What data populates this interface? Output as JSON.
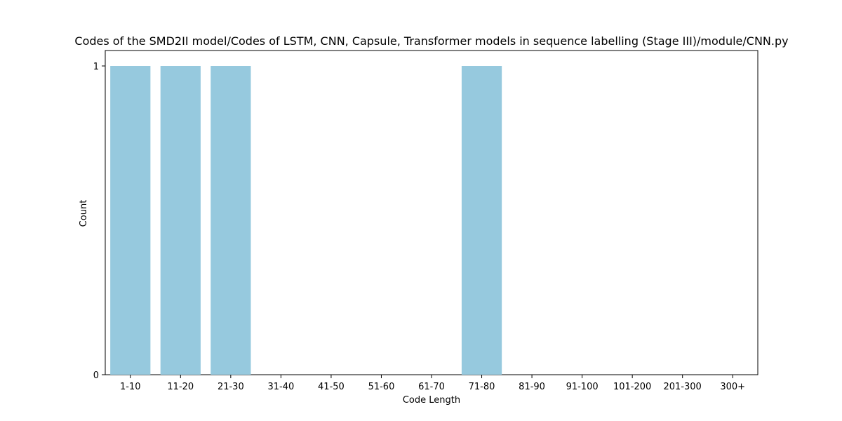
{
  "chart_data": {
    "type": "bar",
    "title": "Codes of the SMD2II model/Codes of LSTM, CNN, Capsule, Transformer models in sequence labelling (Stage III)/module/CNN.py",
    "xlabel": "Code Length",
    "ylabel": "Count",
    "categories": [
      "1-10",
      "11-20",
      "21-30",
      "31-40",
      "41-50",
      "51-60",
      "61-70",
      "71-80",
      "81-90",
      "91-100",
      "101-200",
      "201-300",
      "300+"
    ],
    "values": [
      1,
      1,
      1,
      0,
      0,
      0,
      0,
      1,
      0,
      0,
      0,
      0,
      0
    ],
    "ylim": [
      0,
      1
    ],
    "yticks": [
      0,
      1
    ],
    "grid": false,
    "bar_color": "#96c9de"
  }
}
